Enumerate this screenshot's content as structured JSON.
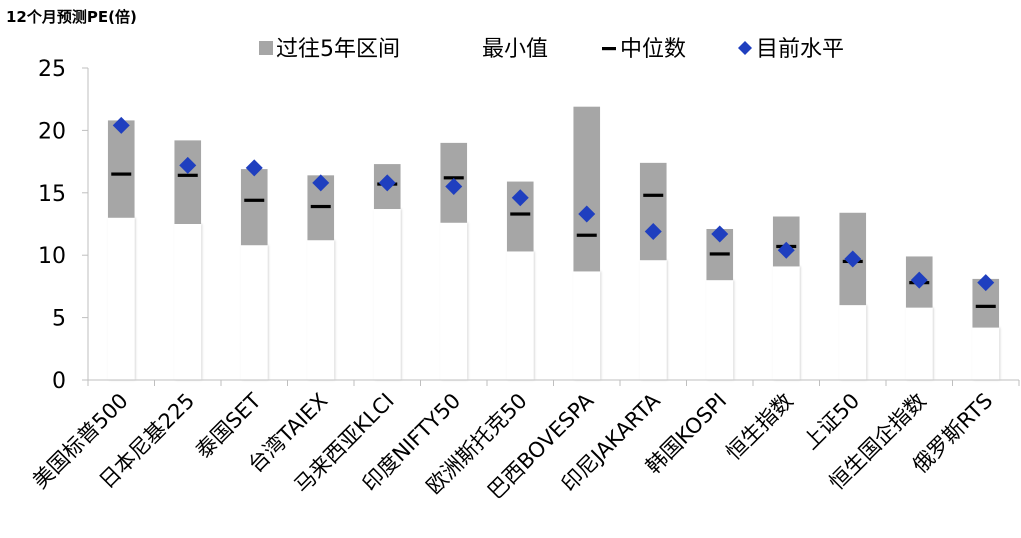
{
  "chart_data": {
    "type": "bar",
    "title": "12个月预测PE(倍)",
    "legend": {
      "placement": "top",
      "entries": [
        {
          "key": "range",
          "label": "过往5年区间"
        },
        {
          "key": "min",
          "label": "最小值"
        },
        {
          "key": "median",
          "label": "中位数"
        },
        {
          "key": "current",
          "label": "目前水平"
        }
      ]
    },
    "colors": {
      "range": "#a6a6a6",
      "min": "#ffffff",
      "median": "#000000",
      "current": "#1f3fbf",
      "axis": "#bfbfbf"
    },
    "ylim": [
      0,
      25
    ],
    "yticks": [
      0,
      5,
      10,
      15,
      20,
      25
    ],
    "categories": [
      "美国标普500",
      "日本尼基225",
      "泰国SET",
      "台湾TAIEX",
      "马来西亚KLCI",
      "印度NIFTY50",
      "欧洲斯托克50",
      "巴西BOVESPA",
      "印尼JAKARTA",
      "韩国KOSPI",
      "恒生指数",
      "上证50",
      "恒生国企指数",
      "俄罗斯RTS"
    ],
    "series": [
      {
        "name": "最小值",
        "key": "min",
        "values": [
          13.0,
          12.5,
          10.8,
          11.2,
          13.7,
          12.6,
          10.3,
          8.7,
          9.6,
          8.0,
          9.1,
          6.0,
          5.8,
          4.2
        ]
      },
      {
        "name": "过往5年区间",
        "key": "max",
        "values": [
          20.8,
          19.2,
          16.9,
          16.4,
          17.3,
          19.0,
          15.9,
          21.9,
          17.4,
          12.1,
          13.1,
          13.4,
          9.9,
          8.1
        ]
      },
      {
        "name": "中位数",
        "key": "median",
        "values": [
          16.5,
          16.4,
          14.4,
          13.9,
          15.7,
          16.2,
          13.3,
          11.6,
          14.8,
          10.1,
          10.7,
          9.5,
          7.8,
          5.9
        ]
      },
      {
        "name": "目前水平",
        "key": "current",
        "values": [
          20.4,
          17.2,
          17.0,
          15.8,
          15.8,
          15.5,
          14.6,
          13.3,
          11.9,
          11.7,
          10.4,
          9.7,
          8.0,
          7.8
        ]
      }
    ]
  }
}
